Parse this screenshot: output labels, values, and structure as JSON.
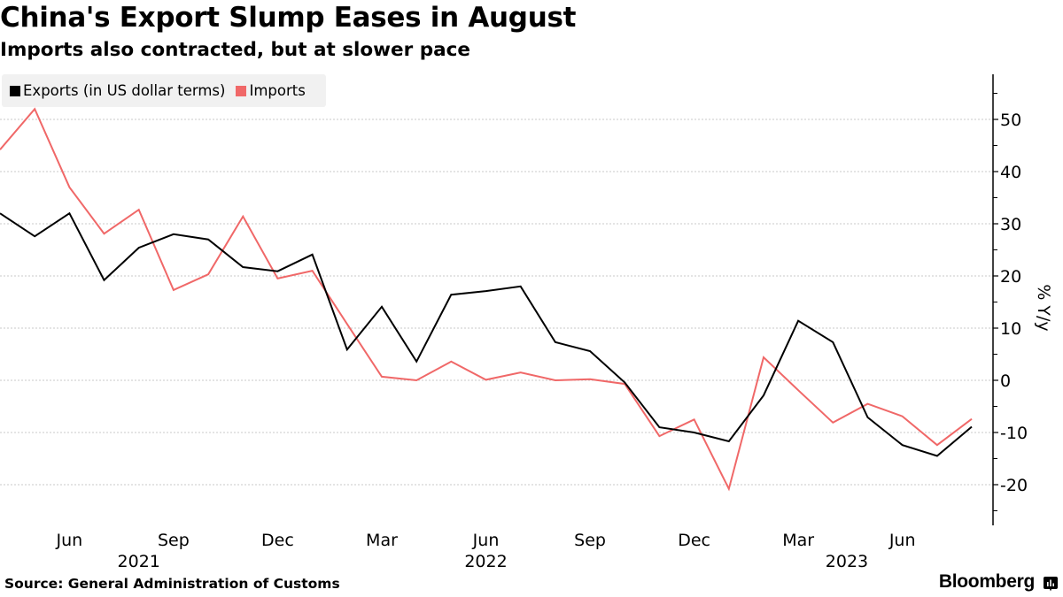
{
  "header": {
    "title": "China's Export Slump Eases in August",
    "subtitle": "Imports also contracted, but at slower pace"
  },
  "legend": [
    {
      "label": "Exports (in US dollar terms)",
      "color": "#000000"
    },
    {
      "label": "Imports",
      "color": "#f06868"
    }
  ],
  "footer": {
    "source": "Source: General Administration of Customs",
    "brand": "Bloomberg",
    "brand_icon": "bloomberg-chart-icon"
  },
  "chart_data": {
    "type": "line",
    "title": "China's Export Slump Eases in August",
    "subtitle": "Imports also contracted, but at slower pace",
    "xlabel": "",
    "ylabel": "% Y/y",
    "y_axis_side": "right",
    "ylim": [
      -27,
      58
    ],
    "yticks": [
      50,
      40,
      30,
      20,
      10,
      0,
      -10,
      -20
    ],
    "ytick_labels": [
      "50",
      "40",
      "30",
      "20",
      "10",
      "0",
      "-10",
      "-20"
    ],
    "grid": true,
    "legend_position": "top-left",
    "x": [
      "2021-04",
      "2021-05",
      "2021-06",
      "2021-07",
      "2021-08",
      "2021-09",
      "2021-10",
      "2021-11",
      "2021-12",
      "2022-01",
      "2022-02",
      "2022-03",
      "2022-04",
      "2022-05",
      "2022-06",
      "2022-07",
      "2022-08",
      "2022-09",
      "2022-10",
      "2022-11",
      "2022-12",
      "2023-01",
      "2023-02",
      "2023-03",
      "2023-04",
      "2023-05",
      "2023-06",
      "2023-07",
      "2023-08"
    ],
    "xtick_labels": [
      {
        "label": "Jun",
        "at": "2021-06"
      },
      {
        "label": "Sep",
        "at": "2021-09"
      },
      {
        "label": "Dec",
        "at": "2021-12"
      },
      {
        "label": "Mar",
        "at": "2022-03"
      },
      {
        "label": "Jun",
        "at": "2022-06"
      },
      {
        "label": "Sep",
        "at": "2022-09"
      },
      {
        "label": "Dec",
        "at": "2022-12"
      },
      {
        "label": "Mar",
        "at": "2023-03"
      },
      {
        "label": "Jun",
        "at": "2023-06"
      }
    ],
    "year_labels": [
      {
        "label": "2021",
        "at": "2021-08"
      },
      {
        "label": "2022",
        "at": "2022-06"
      },
      {
        "label": "2023",
        "at": "2023-04.4"
      }
    ],
    "series": [
      {
        "name": "Exports (in US dollar terms)",
        "color": "#000000",
        "values": [
          32.0,
          27.6,
          32.0,
          19.2,
          25.4,
          28.0,
          27.0,
          21.7,
          20.9,
          24.1,
          5.9,
          14.1,
          3.6,
          16.4,
          17.1,
          18.0,
          7.3,
          5.6,
          -0.4,
          -9.0,
          -10.0,
          -11.7,
          -2.9,
          11.4,
          7.3,
          -7.1,
          -12.4,
          -14.5,
          -8.9
        ]
      },
      {
        "name": "Imports",
        "color": "#f06868",
        "values": [
          44.2,
          52.0,
          37.0,
          28.1,
          32.7,
          17.3,
          20.3,
          31.4,
          19.5,
          21.0,
          10.8,
          0.7,
          0.0,
          3.6,
          0.1,
          1.5,
          0.0,
          0.2,
          -0.7,
          -10.7,
          -7.5,
          -20.8,
          4.4,
          -1.9,
          -8.1,
          -4.5,
          -6.9,
          -12.4,
          -7.4
        ]
      }
    ]
  }
}
